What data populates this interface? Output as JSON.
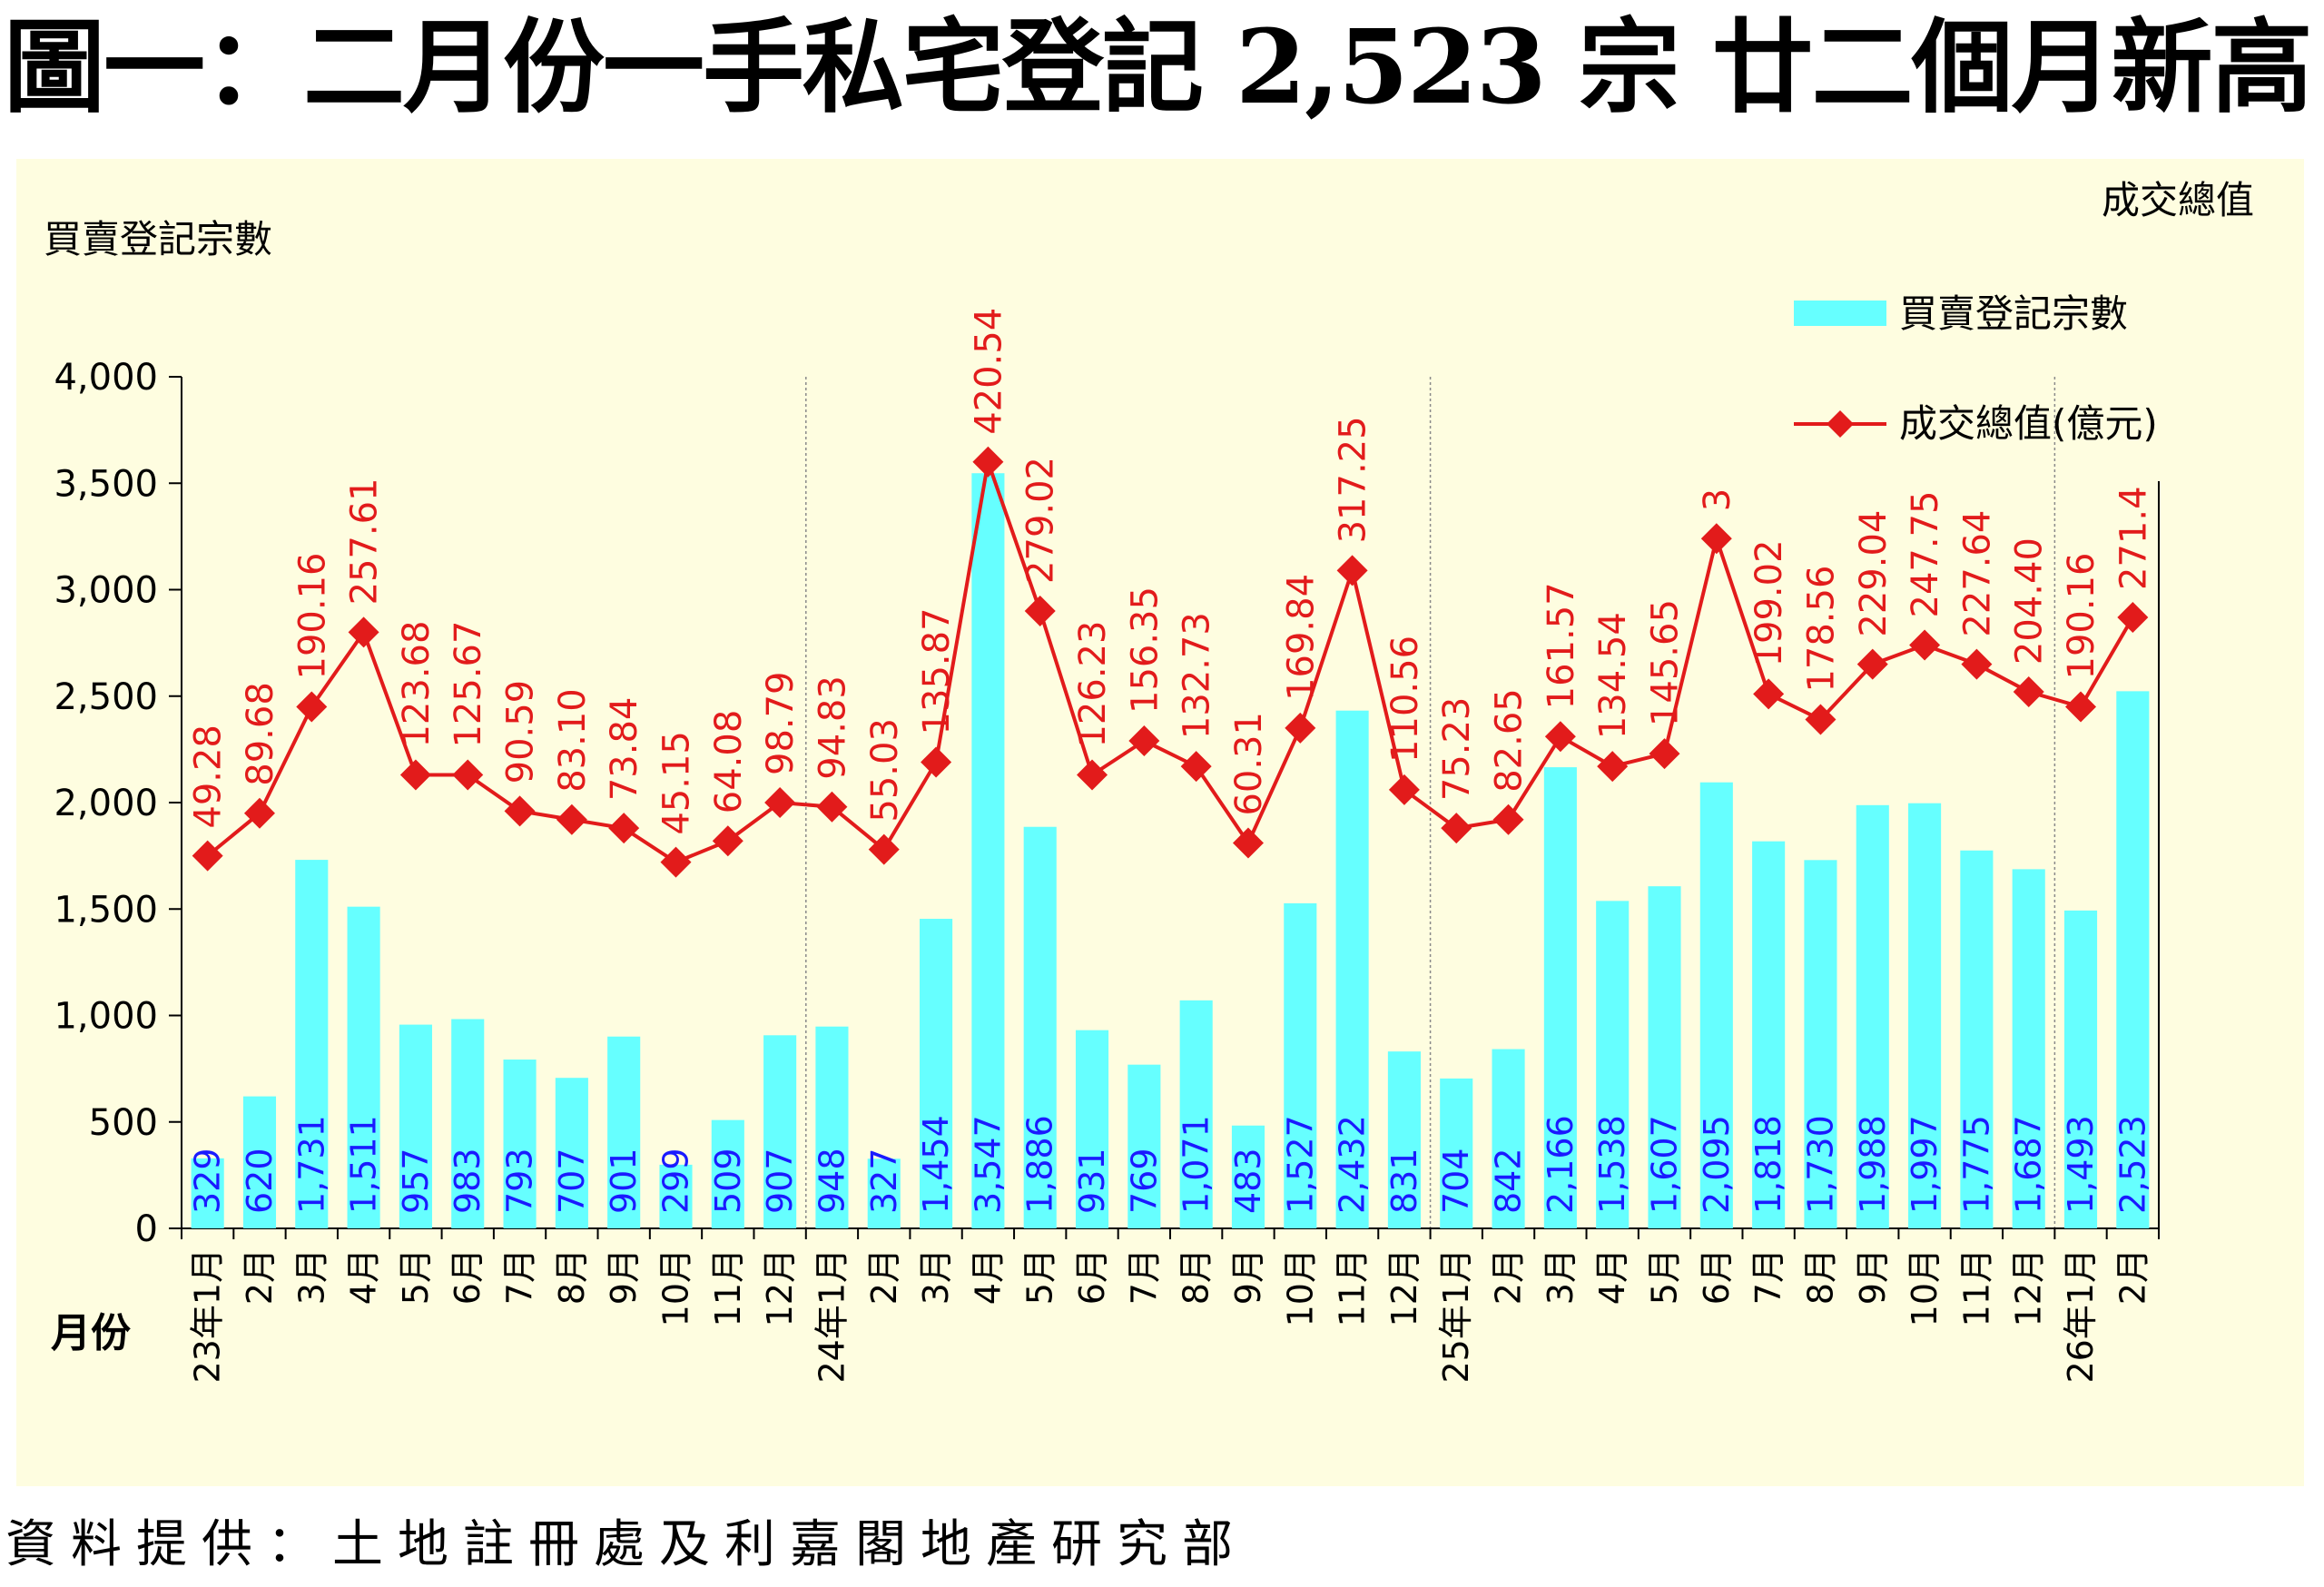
{
  "title": "圖一：二月份一手私宅登記 2,523 宗  廿二個月新高",
  "source": "資料提供：土地註冊處及利嘉閣地產研究部",
  "colors": {
    "bar": "#66ffff",
    "line": "#e21b1b",
    "bar_label": "#1a1aff",
    "line_label": "#e21b1b",
    "panel": "#fefde0"
  },
  "chart_data": {
    "type": "bar+line",
    "y_left_label": "買賣登記宗數",
    "y_right_label": "成交總值",
    "x_label": "月份",
    "ylim": [
      0,
      4000
    ],
    "yticks": [
      0,
      500,
      1000,
      1500,
      2000,
      2500,
      3000,
      3500,
      4000
    ],
    "ytick_labels": [
      "0",
      "500",
      "1,000",
      "1,500",
      "2,000",
      "2,500",
      "3,000",
      "3,500",
      "4,000"
    ],
    "categories": [
      "23年1月",
      "2月",
      "3月",
      "4月",
      "5月",
      "6月",
      "7月",
      "8月",
      "9月",
      "10月",
      "11月",
      "12月",
      "24年1月",
      "2月",
      "3月",
      "4月",
      "5月",
      "6月",
      "7月",
      "8月",
      "9月",
      "10月",
      "11月",
      "12月",
      "25年1月",
      "2月",
      "3月",
      "4月",
      "5月",
      "6月",
      "7月",
      "8月",
      "9月",
      "10月",
      "11月",
      "12月",
      "26年1月",
      "2月"
    ],
    "series": [
      {
        "name": "買賣登記宗數",
        "type": "bar",
        "values": [
          329,
          620,
          1731,
          1511,
          957,
          983,
          793,
          707,
          901,
          299,
          509,
          907,
          948,
          327,
          1454,
          3547,
          1886,
          931,
          769,
          1071,
          483,
          1527,
          2432,
          831,
          704,
          842,
          2166,
          1538,
          1607,
          2095,
          1818,
          1730,
          1988,
          1997,
          1775,
          1687,
          1493,
          2523
        ],
        "labels": [
          "329",
          "620",
          "1,731",
          "1,511",
          "957",
          "983",
          "793",
          "707",
          "901",
          "299",
          "509",
          "907",
          "948",
          "327",
          "1,454",
          "3,547",
          "1,886",
          "931",
          "769",
          "1,071",
          "483",
          "1,527",
          "2,432",
          "831",
          "704",
          "842",
          "2,166",
          "1,538",
          "1,607",
          "2,095",
          "1,818",
          "1,730",
          "1,988",
          "1,997",
          "1,775",
          "1,687",
          "1,493",
          "2,523"
        ]
      },
      {
        "name": "成交總值(億元)",
        "type": "line",
        "values": [
          49.28,
          89.68,
          190.16,
          257.61,
          123.68,
          125.67,
          90.59,
          83.1,
          73.84,
          45.15,
          64.08,
          98.79,
          94.83,
          55.03,
          135.87,
          420.54,
          279.02,
          126.23,
          156.35,
          132.73,
          60.31,
          169.84,
          317.25,
          110.56,
          75.23,
          82.65,
          161.57,
          134.54,
          145.65,
          3,
          199.02,
          178.56,
          229.04,
          247.75,
          227.64,
          204.4,
          190.16,
          271.4
        ],
        "labels": [
          "49.28",
          "89.68",
          "190.16",
          "257.61",
          "123.68",
          "125.67",
          "90.59",
          "83.10",
          "73.84",
          "45.15",
          "64.08",
          "98.79",
          "94.83",
          "55.03",
          "135.87",
          "420.54",
          "279.02",
          "126.23",
          "156.35",
          "132.73",
          "60.31",
          "169.84",
          "317.25",
          "110.56",
          "75.23",
          "82.65",
          "161.57",
          "134.54",
          "145.65",
          "3",
          "199.02",
          "178.56",
          "229.04",
          "247.75",
          "227.64",
          "204.40",
          "190.16",
          "271.4"
        ]
      }
    ],
    "line_plot_levels": [
      1750,
      1950,
      2450,
      2800,
      2130,
      2130,
      1960,
      1920,
      1880,
      1720,
      1820,
      2000,
      1980,
      1780,
      2190,
      3600,
      2900,
      2130,
      2290,
      2170,
      1810,
      2350,
      3090,
      2060,
      1880,
      1920,
      2310,
      2170,
      2230,
      3240,
      2510,
      2390,
      2650,
      2740,
      2650,
      2520,
      2450,
      2870
    ]
  }
}
